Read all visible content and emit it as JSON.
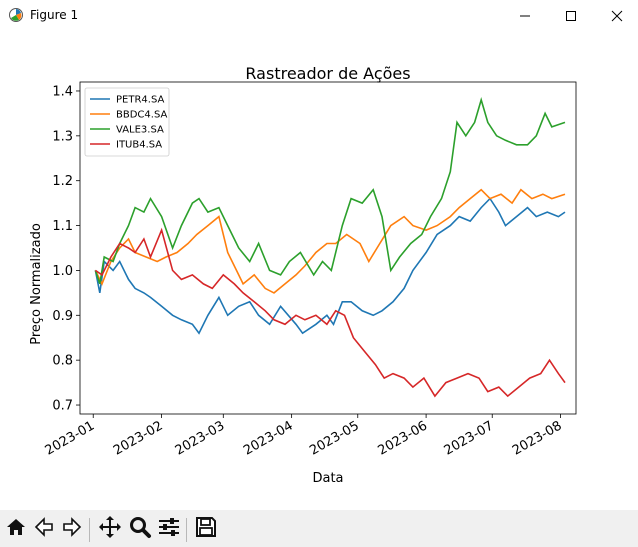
{
  "window": {
    "title": "Figure 1",
    "icons": {
      "app": "matplotlib-figure-icon",
      "minimize": "minimize-icon",
      "maximize": "maximize-icon",
      "close": "close-icon"
    }
  },
  "toolbar": {
    "buttons": [
      {
        "name": "home-button",
        "icon": "home-icon"
      },
      {
        "name": "back-button",
        "icon": "back-arrow-icon"
      },
      {
        "name": "forward-button",
        "icon": "forward-arrow-icon"
      },
      {
        "name": "pan-button",
        "icon": "move-icon"
      },
      {
        "name": "zoom-button",
        "icon": "zoom-icon"
      },
      {
        "name": "configure-subplots-button",
        "icon": "sliders-icon"
      },
      {
        "name": "save-button",
        "icon": "save-icon"
      }
    ]
  },
  "chart_data": {
    "type": "line",
    "title": "Rastreador de Ações",
    "xlabel": "Data",
    "ylabel": "Preço Normalizado",
    "x_ticks": [
      "2023-01",
      "2023-02",
      "2023-03",
      "2023-04",
      "2023-05",
      "2023-06",
      "2023-07",
      "2023-08"
    ],
    "y_ticks": [
      "0.7",
      "0.8",
      "0.9",
      "1.0",
      "1.1",
      "1.2",
      "1.3",
      "1.4"
    ],
    "xlim": [
      "2022-12-26",
      "2023-08-08"
    ],
    "ylim": [
      0.68,
      1.42
    ],
    "legend_position": "upper-left",
    "grid": false,
    "series": [
      {
        "name": "PETR4.SA",
        "color": "#1f77b4",
        "points": [
          [
            "2023-01-02",
            1.0
          ],
          [
            "2023-01-04",
            0.95
          ],
          [
            "2023-01-06",
            1.02
          ],
          [
            "2023-01-10",
            1.0
          ],
          [
            "2023-01-13",
            1.02
          ],
          [
            "2023-01-17",
            0.98
          ],
          [
            "2023-01-20",
            0.96
          ],
          [
            "2023-01-24",
            0.95
          ],
          [
            "2023-01-27",
            0.94
          ],
          [
            "2023-02-01",
            0.92
          ],
          [
            "2023-02-06",
            0.9
          ],
          [
            "2023-02-10",
            0.89
          ],
          [
            "2023-02-15",
            0.88
          ],
          [
            "2023-02-18",
            0.86
          ],
          [
            "2023-02-22",
            0.9
          ],
          [
            "2023-02-27",
            0.94
          ],
          [
            "2023-03-03",
            0.9
          ],
          [
            "2023-03-08",
            0.92
          ],
          [
            "2023-03-13",
            0.93
          ],
          [
            "2023-03-17",
            0.9
          ],
          [
            "2023-03-22",
            0.88
          ],
          [
            "2023-03-27",
            0.92
          ],
          [
            "2023-04-03",
            0.88
          ],
          [
            "2023-04-06",
            0.86
          ],
          [
            "2023-04-12",
            0.88
          ],
          [
            "2023-04-17",
            0.9
          ],
          [
            "2023-04-20",
            0.88
          ],
          [
            "2023-04-24",
            0.93
          ],
          [
            "2023-04-28",
            0.93
          ],
          [
            "2023-05-03",
            0.91
          ],
          [
            "2023-05-08",
            0.9
          ],
          [
            "2023-05-12",
            0.91
          ],
          [
            "2023-05-17",
            0.93
          ],
          [
            "2023-05-22",
            0.96
          ],
          [
            "2023-05-26",
            1.0
          ],
          [
            "2023-06-01",
            1.04
          ],
          [
            "2023-06-06",
            1.08
          ],
          [
            "2023-06-12",
            1.1
          ],
          [
            "2023-06-16",
            1.12
          ],
          [
            "2023-06-21",
            1.11
          ],
          [
            "2023-06-26",
            1.14
          ],
          [
            "2023-06-30",
            1.16
          ],
          [
            "2023-07-04",
            1.13
          ],
          [
            "2023-07-07",
            1.1
          ],
          [
            "2023-07-12",
            1.12
          ],
          [
            "2023-07-17",
            1.14
          ],
          [
            "2023-07-21",
            1.12
          ],
          [
            "2023-07-26",
            1.13
          ],
          [
            "2023-07-31",
            1.12
          ],
          [
            "2023-08-03",
            1.13
          ]
        ]
      },
      {
        "name": "BBDC4.SA",
        "color": "#ff7f0e",
        "points": [
          [
            "2023-01-02",
            1.0
          ],
          [
            "2023-01-05",
            0.97
          ],
          [
            "2023-01-09",
            1.02
          ],
          [
            "2023-01-13",
            1.05
          ],
          [
            "2023-01-17",
            1.07
          ],
          [
            "2023-01-20",
            1.04
          ],
          [
            "2023-01-25",
            1.03
          ],
          [
            "2023-01-30",
            1.02
          ],
          [
            "2023-02-03",
            1.03
          ],
          [
            "2023-02-08",
            1.04
          ],
          [
            "2023-02-13",
            1.06
          ],
          [
            "2023-02-17",
            1.08
          ],
          [
            "2023-02-22",
            1.1
          ],
          [
            "2023-02-27",
            1.12
          ],
          [
            "2023-03-03",
            1.04
          ],
          [
            "2023-03-07",
            1.0
          ],
          [
            "2023-03-10",
            0.97
          ],
          [
            "2023-03-15",
            0.99
          ],
          [
            "2023-03-20",
            0.96
          ],
          [
            "2023-03-24",
            0.95
          ],
          [
            "2023-03-29",
            0.97
          ],
          [
            "2023-04-03",
            0.99
          ],
          [
            "2023-04-07",
            1.01
          ],
          [
            "2023-04-12",
            1.04
          ],
          [
            "2023-04-17",
            1.06
          ],
          [
            "2023-04-21",
            1.06
          ],
          [
            "2023-04-26",
            1.08
          ],
          [
            "2023-05-02",
            1.06
          ],
          [
            "2023-05-06",
            1.02
          ],
          [
            "2023-05-11",
            1.06
          ],
          [
            "2023-05-16",
            1.1
          ],
          [
            "2023-05-22",
            1.12
          ],
          [
            "2023-05-26",
            1.1
          ],
          [
            "2023-06-01",
            1.09
          ],
          [
            "2023-06-06",
            1.1
          ],
          [
            "2023-06-12",
            1.12
          ],
          [
            "2023-06-16",
            1.14
          ],
          [
            "2023-06-21",
            1.16
          ],
          [
            "2023-06-26",
            1.18
          ],
          [
            "2023-06-30",
            1.16
          ],
          [
            "2023-07-05",
            1.17
          ],
          [
            "2023-07-10",
            1.15
          ],
          [
            "2023-07-14",
            1.18
          ],
          [
            "2023-07-19",
            1.16
          ],
          [
            "2023-07-24",
            1.17
          ],
          [
            "2023-07-28",
            1.16
          ],
          [
            "2023-08-03",
            1.17
          ]
        ]
      },
      {
        "name": "VALE3.SA",
        "color": "#2ca02c",
        "points": [
          [
            "2023-01-02",
            1.0
          ],
          [
            "2023-01-04",
            0.97
          ],
          [
            "2023-01-06",
            1.03
          ],
          [
            "2023-01-10",
            1.02
          ],
          [
            "2023-01-13",
            1.06
          ],
          [
            "2023-01-17",
            1.1
          ],
          [
            "2023-01-20",
            1.14
          ],
          [
            "2023-01-24",
            1.13
          ],
          [
            "2023-01-27",
            1.16
          ],
          [
            "2023-02-01",
            1.12
          ],
          [
            "2023-02-06",
            1.05
          ],
          [
            "2023-02-10",
            1.1
          ],
          [
            "2023-02-15",
            1.15
          ],
          [
            "2023-02-18",
            1.16
          ],
          [
            "2023-02-22",
            1.13
          ],
          [
            "2023-02-27",
            1.14
          ],
          [
            "2023-03-03",
            1.1
          ],
          [
            "2023-03-08",
            1.05
          ],
          [
            "2023-03-13",
            1.02
          ],
          [
            "2023-03-17",
            1.06
          ],
          [
            "2023-03-22",
            1.0
          ],
          [
            "2023-03-27",
            0.99
          ],
          [
            "2023-03-31",
            1.02
          ],
          [
            "2023-04-05",
            1.04
          ],
          [
            "2023-04-11",
            0.99
          ],
          [
            "2023-04-15",
            1.02
          ],
          [
            "2023-04-19",
            1.0
          ],
          [
            "2023-04-24",
            1.1
          ],
          [
            "2023-04-28",
            1.16
          ],
          [
            "2023-05-03",
            1.15
          ],
          [
            "2023-05-08",
            1.18
          ],
          [
            "2023-05-12",
            1.12
          ],
          [
            "2023-05-16",
            1.0
          ],
          [
            "2023-05-20",
            1.03
          ],
          [
            "2023-05-25",
            1.06
          ],
          [
            "2023-05-30",
            1.08
          ],
          [
            "2023-06-03",
            1.12
          ],
          [
            "2023-06-08",
            1.16
          ],
          [
            "2023-06-12",
            1.22
          ],
          [
            "2023-06-15",
            1.33
          ],
          [
            "2023-06-19",
            1.3
          ],
          [
            "2023-06-23",
            1.33
          ],
          [
            "2023-06-26",
            1.38
          ],
          [
            "2023-06-29",
            1.33
          ],
          [
            "2023-07-03",
            1.3
          ],
          [
            "2023-07-07",
            1.29
          ],
          [
            "2023-07-12",
            1.28
          ],
          [
            "2023-07-17",
            1.28
          ],
          [
            "2023-07-21",
            1.3
          ],
          [
            "2023-07-25",
            1.35
          ],
          [
            "2023-07-28",
            1.32
          ],
          [
            "2023-08-03",
            1.33
          ]
        ]
      },
      {
        "name": "ITUB4.SA",
        "color": "#d62728",
        "points": [
          [
            "2023-01-02",
            1.0
          ],
          [
            "2023-01-05",
            0.99
          ],
          [
            "2023-01-09",
            1.03
          ],
          [
            "2023-01-13",
            1.06
          ],
          [
            "2023-01-17",
            1.05
          ],
          [
            "2023-01-20",
            1.04
          ],
          [
            "2023-01-24",
            1.07
          ],
          [
            "2023-01-27",
            1.03
          ],
          [
            "2023-02-01",
            1.09
          ],
          [
            "2023-02-06",
            1.0
          ],
          [
            "2023-02-10",
            0.98
          ],
          [
            "2023-02-15",
            0.99
          ],
          [
            "2023-02-20",
            0.97
          ],
          [
            "2023-02-24",
            0.96
          ],
          [
            "2023-03-01",
            0.99
          ],
          [
            "2023-03-06",
            0.97
          ],
          [
            "2023-03-10",
            0.95
          ],
          [
            "2023-03-15",
            0.93
          ],
          [
            "2023-03-20",
            0.91
          ],
          [
            "2023-03-24",
            0.89
          ],
          [
            "2023-03-29",
            0.88
          ],
          [
            "2023-04-03",
            0.9
          ],
          [
            "2023-04-07",
            0.89
          ],
          [
            "2023-04-12",
            0.9
          ],
          [
            "2023-04-17",
            0.88
          ],
          [
            "2023-04-21",
            0.91
          ],
          [
            "2023-04-25",
            0.9
          ],
          [
            "2023-04-29",
            0.85
          ],
          [
            "2023-05-04",
            0.82
          ],
          [
            "2023-05-09",
            0.79
          ],
          [
            "2023-05-13",
            0.76
          ],
          [
            "2023-05-17",
            0.77
          ],
          [
            "2023-05-22",
            0.76
          ],
          [
            "2023-05-26",
            0.74
          ],
          [
            "2023-05-31",
            0.76
          ],
          [
            "2023-06-05",
            0.72
          ],
          [
            "2023-06-10",
            0.75
          ],
          [
            "2023-06-15",
            0.76
          ],
          [
            "2023-06-20",
            0.77
          ],
          [
            "2023-06-25",
            0.76
          ],
          [
            "2023-06-29",
            0.73
          ],
          [
            "2023-07-04",
            0.74
          ],
          [
            "2023-07-08",
            0.72
          ],
          [
            "2023-07-13",
            0.74
          ],
          [
            "2023-07-18",
            0.76
          ],
          [
            "2023-07-23",
            0.77
          ],
          [
            "2023-07-27",
            0.8
          ],
          [
            "2023-07-31",
            0.77
          ],
          [
            "2023-08-03",
            0.75
          ]
        ]
      }
    ]
  }
}
